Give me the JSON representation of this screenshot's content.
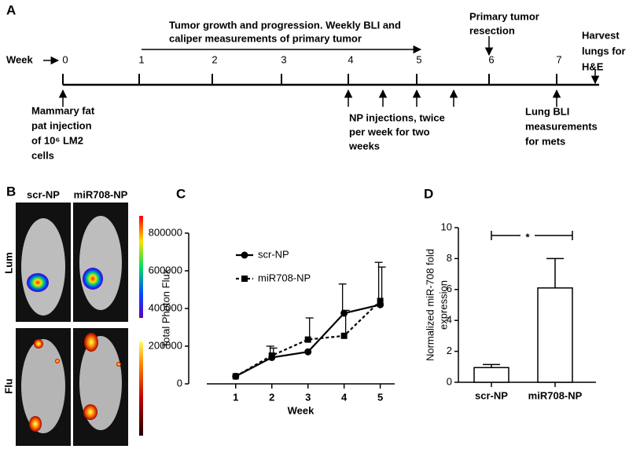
{
  "panel_labels": [
    "A",
    "B",
    "C",
    "D"
  ],
  "timeline": {
    "week_label": "Week",
    "weeks": [
      "0",
      "1",
      "2",
      "3",
      "4",
      "5",
      "6",
      "7"
    ],
    "growth_note": [
      "Tumor growth and progression. Weekly BLI and",
      "caliper measurements of primary tumor"
    ],
    "resection": [
      "Primary tumor",
      "resection"
    ],
    "harvest": [
      "Harvest",
      "lungs for",
      "H&E"
    ],
    "injection": [
      "Mammary fat",
      "pat injection",
      "of 10⁶ LM2",
      "cells"
    ],
    "np": [
      "NP injections, twice",
      "per week for two",
      "weeks"
    ],
    "lung_bli": [
      "Lung BLI",
      "measurements",
      "for mets"
    ]
  },
  "imaging": {
    "columns": [
      "scr-NP",
      "miR708-NP"
    ],
    "rows": [
      "Lum",
      "Flu"
    ]
  },
  "chart_data": [
    {
      "type": "line",
      "x_label": "Week",
      "y_label": "Total Photon Flux",
      "x": [
        1,
        2,
        3,
        4,
        5
      ],
      "xlim": [
        0.2,
        5.4
      ],
      "xticks": [
        1,
        2,
        3,
        4,
        5
      ],
      "ylim": [
        0,
        800000
      ],
      "yticks": [
        0,
        200000,
        400000,
        600000,
        800000
      ],
      "series": [
        {
          "name": "scr-NP",
          "color": "#000000",
          "marker": "circle",
          "dash": "solid",
          "values": [
            40000,
            140000,
            170000,
            375000,
            420000
          ],
          "errors": [
            0,
            60000,
            0,
            155000,
            225000
          ]
        },
        {
          "name": "miR708-NP",
          "color": "#000000",
          "marker": "square",
          "dash": "dashed",
          "values": [
            40000,
            150000,
            235000,
            255000,
            440000
          ],
          "errors": [
            0,
            40000,
            115000,
            135000,
            180000
          ]
        }
      ]
    },
    {
      "type": "bar",
      "y_label": [
        "Normalized miR-708 fold",
        "expression"
      ],
      "categories": [
        "scr-NP",
        "miR708-NP"
      ],
      "values": [
        0.95,
        6.1
      ],
      "errors": [
        0.2,
        1.9
      ],
      "color": "#ffffff",
      "ylim": [
        0,
        10
      ],
      "yticks": [
        0,
        2,
        4,
        6,
        8,
        10
      ],
      "significance": "*"
    }
  ]
}
